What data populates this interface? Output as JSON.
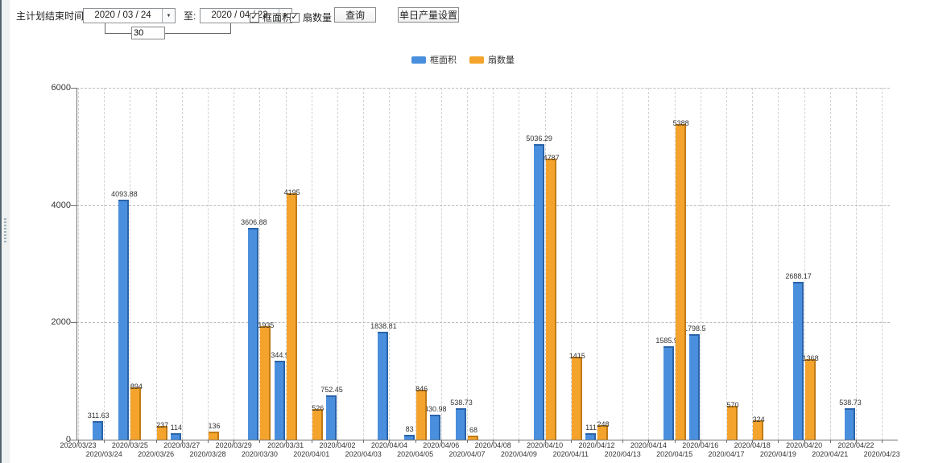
{
  "topbar": {
    "plan_end_label": "主计划结束时间:",
    "date_from": "2020 / 03 / 24",
    "to_label": "至:",
    "date_to": "2020 / 04 / 23",
    "days_value": "30",
    "checkbox_frame_area_label": "框面积",
    "checkbox_fan_count_label": "扇数量",
    "query_button": "查询",
    "daily_output_button": "单日产量设置"
  },
  "icons": {
    "checkbox_check": "✓",
    "dropdown_arrow": "▼"
  },
  "colors": {
    "frame_area_bar": "#4a8fdd",
    "frame_area_edge": "#2a63a8",
    "fan_count_bar": "#f4a42c",
    "fan_count_edge": "#c07b15",
    "axis": "#707070",
    "gridline": "#bbbbbb"
  },
  "chart_data": {
    "type": "bar",
    "title": "",
    "xlabel": "",
    "ylabel": "",
    "ylim": [
      0,
      6000
    ],
    "yticks": [
      0,
      2000,
      4000,
      6000
    ],
    "grid": "dashed",
    "legend_position": "top-center",
    "categories": [
      "2020/03/23",
      "2020/03/24",
      "2020/03/25",
      "2020/03/26",
      "2020/03/27",
      "2020/03/28",
      "2020/03/29",
      "2020/03/30",
      "2020/03/31",
      "2020/04/01",
      "2020/04/02",
      "2020/04/03",
      "2020/04/04",
      "2020/04/05",
      "2020/04/06",
      "2020/04/07",
      "2020/04/08",
      "2020/04/09",
      "2020/04/10",
      "2020/04/11",
      "2020/04/12",
      "2020/04/13",
      "2020/04/14",
      "2020/04/15",
      "2020/04/16",
      "2020/04/17",
      "2020/04/18",
      "2020/04/19",
      "2020/04/20",
      "2020/04/21",
      "2020/04/22",
      "2020/04/23"
    ],
    "series": [
      {
        "name": "框面积",
        "color": "#4a8fdd",
        "values": [
          null,
          311.63,
          4093.88,
          null,
          114,
          null,
          null,
          3606.88,
          1344.95,
          null,
          752.45,
          null,
          1838.81,
          83,
          430.98,
          538.73,
          null,
          null,
          5036.29,
          null,
          111,
          null,
          null,
          1585.96,
          1798.5,
          null,
          null,
          null,
          2688.17,
          null,
          538.73,
          null
        ]
      },
      {
        "name": "扇数量",
        "color": "#f4a42c",
        "values": [
          null,
          null,
          894,
          237,
          null,
          136,
          null,
          1935,
          4195,
          526,
          null,
          null,
          null,
          846,
          null,
          68,
          null,
          null,
          4787,
          1415,
          248,
          null,
          null,
          5388,
          null,
          570,
          324,
          null,
          1368,
          null,
          null,
          null
        ]
      }
    ]
  }
}
